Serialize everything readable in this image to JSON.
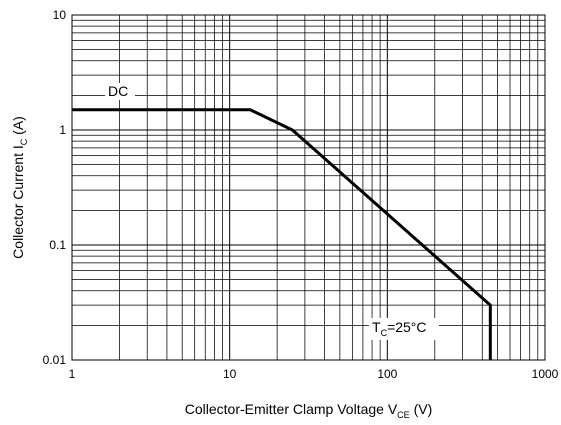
{
  "chart_data": {
    "type": "line",
    "xscale": "log",
    "yscale": "log",
    "xlim": [
      1,
      1000
    ],
    "ylim": [
      0.01,
      10
    ],
    "grid": true,
    "xticks": [
      "1",
      "10",
      "100",
      "1000"
    ],
    "yticks": [
      "0.01",
      "0.1",
      "1",
      "10"
    ],
    "xlabel": {
      "main": "Collector-Emitter Clamp Voltage V",
      "sub": "CE",
      "tail": " (V)"
    },
    "ylabel": {
      "main": "Collector Current I",
      "sub": "C",
      "tail": " (A)"
    },
    "series": [
      {
        "name": "DC",
        "x": [
          1,
          13.5,
          25,
          450,
          450,
          450
        ],
        "y": [
          1.5,
          1.5,
          1.0,
          0.03,
          0.03,
          0.01
        ]
      }
    ],
    "annotations": [
      {
        "id": "dc",
        "text": "DC"
      },
      {
        "id": "tc",
        "main": "T",
        "sub": "C",
        "tail": "=25°C"
      }
    ],
    "colors": {
      "line": "#000000",
      "grid": "#000000",
      "background": "#ffffff"
    }
  }
}
